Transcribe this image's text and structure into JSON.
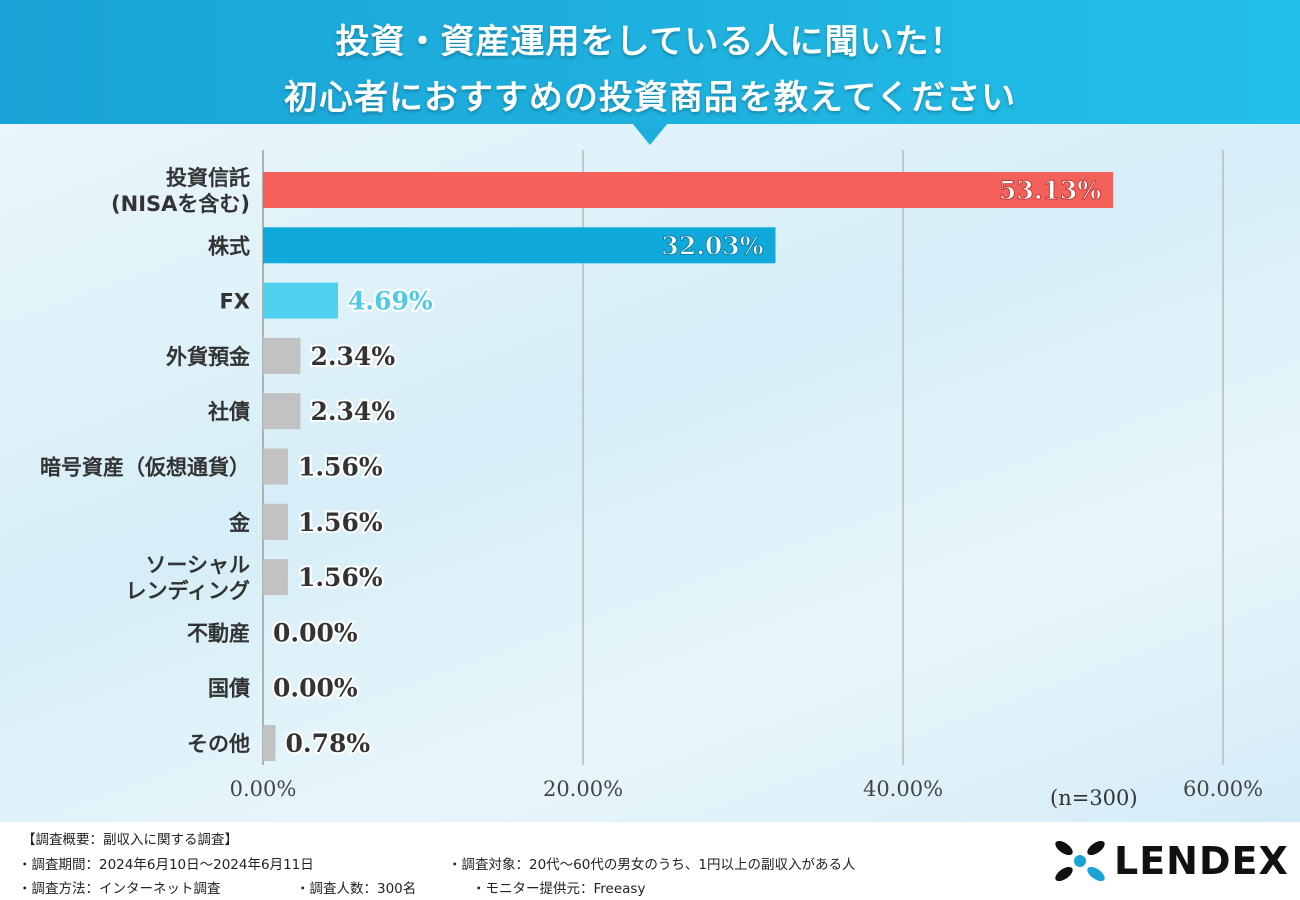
{
  "header": {
    "title_line1": "投資・資産運用をしている人に聞いた！",
    "title_line2": "初心者におすすめの投資商品を教えてください"
  },
  "chart_data": {
    "type": "bar",
    "orientation": "horizontal",
    "categories": [
      [
        "投資信託",
        "(NISAを含む)"
      ],
      [
        "株式"
      ],
      [
        "FX"
      ],
      [
        "外貨預金"
      ],
      [
        "社債"
      ],
      [
        "暗号資産（仮想通貨）"
      ],
      [
        "金"
      ],
      [
        "ソーシャル",
        "レンディング"
      ],
      [
        "不動産"
      ],
      [
        "国債"
      ],
      [
        "その他"
      ]
    ],
    "values": [
      53.13,
      32.03,
      4.69,
      2.34,
      2.34,
      1.56,
      1.56,
      1.56,
      0.0,
      0.0,
      0.78
    ],
    "value_labels": [
      "53.13%",
      "32.03%",
      "4.69%",
      "2.34%",
      "2.34%",
      "1.56%",
      "1.56%",
      "1.56%",
      "0.00%",
      "0.00%",
      "0.78%"
    ],
    "bar_colors": [
      "#f4605a",
      "#0fa9dc",
      "#4fd0ef",
      "#c2c2c2",
      "#c2c2c2",
      "#c2c2c2",
      "#c2c2c2",
      "#c2c2c2",
      "#c2c2c2",
      "#c2c2c2",
      "#c2c2c2"
    ],
    "label_colors": [
      "#ffffff",
      "#ffffff",
      "#4fc9e8",
      "#333333",
      "#333333",
      "#333333",
      "#333333",
      "#333333",
      "#333333",
      "#333333",
      "#333333"
    ],
    "xlim": [
      0,
      60
    ],
    "ticks": [
      0,
      20,
      40,
      60
    ],
    "tick_labels": [
      "0.00%",
      "20.00%",
      "40.00%",
      "60.00%"
    ],
    "grid": true,
    "sample_note": "(n=300)"
  },
  "footer": {
    "summary_title": "【調査概要：副収入に関する調査】",
    "period": "・調査期間：2024年6月10日〜2024年6月11日",
    "target": "・調査対象：20代〜60代の男女のうち、1円以上の副収入がある人",
    "method": "・調査方法：インターネット調査",
    "count": "・調査人数：300名",
    "provider": "・モニター提供元：Freeasy",
    "logo_text": "LENDEX"
  }
}
